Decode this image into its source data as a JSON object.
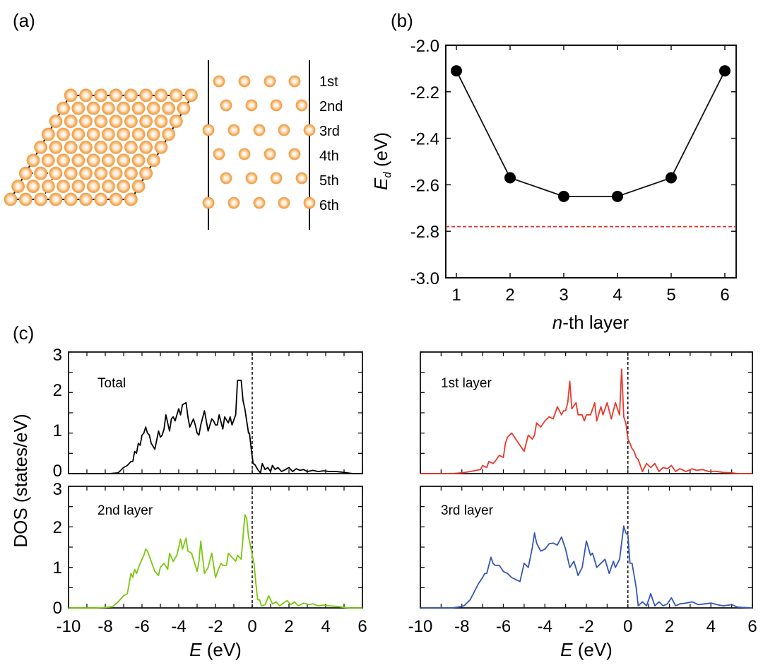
{
  "panel_labels": {
    "a": "(a)",
    "b": "(b)",
    "c": "(c)"
  },
  "structure": {
    "layer_labels": [
      "1st",
      "2nd",
      "3rd",
      "4th",
      "5th",
      "6th"
    ],
    "atom_color": "#f4a460"
  },
  "chart_data": [
    {
      "id": "b",
      "type": "line",
      "title": "",
      "xlabel": "n-th layer",
      "ylabel": "E_d (eV)",
      "xlabel_italic_part": "n",
      "xlabel_rest": "-th layer",
      "ylabel_main": "E",
      "ylabel_sub": "d",
      "ylabel_rest": " (eV)",
      "x": [
        1,
        2,
        3,
        4,
        5,
        6
      ],
      "values": [
        -2.11,
        -2.57,
        -2.65,
        -2.65,
        -2.57,
        -2.11
      ],
      "xlim": [
        0.8,
        6.2
      ],
      "ylim": [
        -3.0,
        -2.0
      ],
      "xticks": [
        "1",
        "2",
        "3",
        "4",
        "5",
        "6"
      ],
      "yticks": [
        "-2.0",
        "-2.2",
        "-2.4",
        "-2.6",
        "-2.8",
        "-3.0"
      ],
      "reference_line": {
        "y": -2.78,
        "style": "dashed",
        "color": "#e0302a"
      },
      "line_color": "#000000",
      "marker": "filled-circle"
    },
    {
      "id": "c",
      "type": "line",
      "ylabel": "DOS (states/eV)",
      "xlabel_italic_part": "E",
      "xlabel_rest": " (eV)",
      "xlim": [
        -10,
        6
      ],
      "ylim": [
        0,
        3
      ],
      "xticks": [
        "-10",
        "-8",
        "-6",
        "-4",
        "-2",
        "0",
        "2",
        "4",
        "6"
      ],
      "yticks": [
        "0",
        "1",
        "2",
        "3"
      ],
      "fermi_level": 0,
      "subplots": [
        {
          "name": "Total",
          "color": "#000000",
          "x": [
            -10,
            -8.5,
            -7.8,
            -7.3,
            -7.0,
            -6.8,
            -6.6,
            -6.5,
            -6.4,
            -6.3,
            -6.2,
            -6.1,
            -6.0,
            -5.9,
            -5.8,
            -5.7,
            -5.6,
            -5.5,
            -5.3,
            -5.1,
            -5.0,
            -4.9,
            -4.8,
            -4.7,
            -4.5,
            -4.4,
            -4.3,
            -4.2,
            -4.0,
            -3.9,
            -3.8,
            -3.6,
            -3.5,
            -3.4,
            -3.2,
            -3.1,
            -3.0,
            -2.9,
            -2.8,
            -2.6,
            -2.4,
            -2.2,
            -2.1,
            -2.0,
            -1.9,
            -1.8,
            -1.6,
            -1.5,
            -1.3,
            -1.2,
            -1.1,
            -0.9,
            -0.8,
            -0.6,
            -0.5,
            -0.4,
            -0.3,
            -0.2,
            -0.15,
            -0.05,
            0.05,
            0.15,
            0.3,
            0.45,
            0.55,
            0.7,
            0.85,
            1.0,
            1.1,
            1.25,
            1.4,
            1.6,
            1.8,
            2.0,
            2.2,
            2.4,
            2.6,
            2.8,
            3.0,
            3.3,
            3.6,
            3.9,
            4.2,
            4.6,
            5.0,
            5.3,
            5.5,
            6.0
          ],
          "values": [
            0,
            0,
            0,
            0.02,
            0.15,
            0.2,
            0.3,
            0.3,
            0.55,
            0.5,
            0.75,
            0.7,
            0.95,
            1.0,
            1.15,
            1.0,
            0.95,
            0.75,
            0.6,
            1.05,
            0.9,
            0.95,
            1.1,
            1.45,
            1.05,
            1.35,
            1.4,
            1.3,
            1.6,
            1.45,
            1.7,
            1.75,
            1.4,
            1.15,
            1.35,
            1.2,
            1.0,
            0.95,
            1.2,
            1.55,
            1.05,
            1.35,
            1.3,
            1.2,
            1.2,
            1.45,
            1.1,
            1.4,
            1.25,
            1.4,
            1.2,
            1.45,
            2.3,
            2.3,
            1.8,
            1.6,
            1.3,
            1.0,
            1.0,
            0.6,
            0.25,
            0.22,
            0.1,
            0.02,
            0.25,
            0.1,
            0.15,
            0.05,
            0.2,
            0.1,
            0.15,
            0.05,
            0.1,
            0.15,
            0.05,
            0.12,
            0.08,
            0.1,
            0.05,
            0.08,
            0.05,
            0.07,
            0.05,
            0.05,
            0.03,
            0.01,
            0,
            0
          ]
        },
        {
          "name": "1st layer",
          "color": "#e8392b",
          "x": [
            -10,
            -8.5,
            -8.0,
            -7.6,
            -7.3,
            -7.1,
            -7.0,
            -6.8,
            -6.7,
            -6.5,
            -6.4,
            -6.2,
            -6.0,
            -5.9,
            -5.8,
            -5.6,
            -5.4,
            -5.2,
            -5.0,
            -4.9,
            -4.8,
            -4.6,
            -4.5,
            -4.4,
            -4.2,
            -4.0,
            -3.8,
            -3.6,
            -3.4,
            -3.2,
            -3.1,
            -3.0,
            -2.9,
            -2.8,
            -2.7,
            -2.5,
            -2.4,
            -2.2,
            -2.1,
            -2.0,
            -1.8,
            -1.6,
            -1.5,
            -1.3,
            -1.2,
            -1.0,
            -0.8,
            -0.6,
            -0.4,
            -0.3,
            -0.2,
            -0.1,
            0.0,
            0.1,
            0.2,
            0.3,
            0.4,
            0.5,
            0.7,
            0.9,
            1.1,
            1.3,
            1.5,
            1.7,
            1.9,
            2.1,
            2.3,
            2.5,
            2.8,
            3.1,
            3.3,
            3.6,
            3.9,
            4.2,
            4.6,
            5.0,
            5.3,
            6.0
          ],
          "values": [
            0,
            0,
            0.02,
            0.05,
            0.08,
            0.1,
            0.2,
            0.15,
            0.3,
            0.25,
            0.3,
            0.45,
            0.4,
            0.75,
            0.9,
            1.0,
            0.85,
            0.7,
            0.55,
            0.75,
            0.95,
            0.85,
            0.95,
            1.25,
            1.15,
            1.3,
            1.4,
            1.35,
            1.65,
            1.45,
            1.55,
            1.55,
            1.75,
            2.28,
            1.6,
            1.75,
            1.45,
            1.45,
            1.3,
            1.45,
            1.45,
            1.75,
            1.3,
            1.65,
            1.45,
            1.75,
            1.35,
            1.75,
            1.45,
            2.58,
            1.4,
            1.25,
            0.85,
            0.75,
            0.62,
            0.55,
            0.4,
            0.35,
            0.05,
            0.25,
            0.15,
            0.25,
            0.05,
            0.15,
            0.12,
            0.2,
            0.05,
            0.12,
            0.05,
            0.12,
            0.08,
            0.1,
            0.05,
            0.06,
            0.03,
            0.02,
            0,
            0
          ]
        },
        {
          "name": "2nd layer",
          "color": "#7ac70c",
          "x": [
            -10,
            -9.0,
            -8.5,
            -8.0,
            -7.6,
            -7.3,
            -7.0,
            -6.8,
            -6.6,
            -6.5,
            -6.4,
            -6.3,
            -6.1,
            -5.9,
            -5.8,
            -5.7,
            -5.5,
            -5.3,
            -5.1,
            -5.0,
            -4.8,
            -4.6,
            -4.5,
            -4.3,
            -4.1,
            -3.9,
            -3.8,
            -3.6,
            -3.5,
            -3.3,
            -3.1,
            -3.0,
            -2.9,
            -2.8,
            -2.6,
            -2.4,
            -2.2,
            -2.0,
            -1.8,
            -1.7,
            -1.6,
            -1.4,
            -1.3,
            -1.1,
            -0.9,
            -0.8,
            -0.6,
            -0.4,
            -0.3,
            -0.2,
            -0.1,
            0.0,
            0.1,
            0.2,
            0.3,
            0.4,
            0.5,
            0.7,
            0.9,
            1.1,
            1.3,
            1.5,
            1.7,
            1.9,
            2.1,
            2.3,
            2.5,
            2.8,
            3.1,
            3.3,
            3.6,
            3.9,
            4.2,
            4.6,
            5.0,
            5.3,
            6.0
          ],
          "values": [
            0,
            0,
            0,
            0.01,
            0.03,
            0.15,
            0.3,
            0.35,
            0.85,
            0.75,
            0.95,
            0.85,
            1.1,
            1.3,
            1.45,
            1.4,
            1.15,
            0.9,
            0.8,
            1.0,
            1.1,
            0.95,
            1.35,
            1.15,
            1.3,
            1.7,
            1.45,
            1.72,
            1.4,
            1.35,
            1.05,
            0.9,
            1.15,
            1.65,
            0.85,
            1.0,
            1.35,
            0.75,
            1.0,
            1.1,
            1.05,
            1.05,
            1.35,
            1.25,
            1.15,
            1.3,
            1.2,
            2.3,
            2.2,
            1.75,
            1.55,
            1.3,
            1.1,
            0.6,
            0.2,
            0.2,
            0.05,
            0.08,
            0.3,
            0.1,
            0.15,
            0.05,
            0.12,
            0.18,
            0.08,
            0.15,
            0.05,
            0.12,
            0.08,
            0.1,
            0.05,
            0.07,
            0.05,
            0.04,
            0.01,
            0,
            0
          ]
        },
        {
          "name": "3rd layer",
          "color": "#3457b5",
          "x": [
            -10,
            -8.5,
            -8.2,
            -7.9,
            -7.6,
            -7.4,
            -7.2,
            -7.0,
            -6.9,
            -6.8,
            -6.6,
            -6.5,
            -6.4,
            -6.2,
            -6.0,
            -5.8,
            -5.6,
            -5.4,
            -5.2,
            -5.0,
            -4.8,
            -4.6,
            -4.5,
            -4.4,
            -4.2,
            -4.0,
            -3.8,
            -3.6,
            -3.4,
            -3.2,
            -3.0,
            -2.8,
            -2.6,
            -2.4,
            -2.2,
            -2.0,
            -1.8,
            -1.7,
            -1.5,
            -1.3,
            -1.1,
            -0.9,
            -0.7,
            -0.6,
            -0.4,
            -0.2,
            -0.1,
            0.0,
            0.1,
            0.2,
            0.3,
            0.4,
            0.5,
            0.7,
            0.9,
            1.1,
            1.3,
            1.5,
            1.7,
            1.9,
            2.1,
            2.3,
            2.5,
            2.8,
            3.1,
            3.4,
            3.7,
            4.0,
            4.3,
            4.6,
            5.0,
            5.3,
            6.0
          ],
          "values": [
            0,
            0,
            0.02,
            0.05,
            0.2,
            0.4,
            0.6,
            0.75,
            0.85,
            0.85,
            1.25,
            1.1,
            1.05,
            1.05,
            0.9,
            0.85,
            0.75,
            0.7,
            0.65,
            1.1,
            1.0,
            1.5,
            1.85,
            1.6,
            1.4,
            1.45,
            1.58,
            1.6,
            1.55,
            1.75,
            1.45,
            1.0,
            1.15,
            0.8,
            1.0,
            1.65,
            1.3,
            1.35,
            1.0,
            1.1,
            1.2,
            0.85,
            1.15,
            1.0,
            1.2,
            2.02,
            1.85,
            1.8,
            1.1,
            1.1,
            0.8,
            0.5,
            0.05,
            0.15,
            0.05,
            0.35,
            0.05,
            0.15,
            0.05,
            0.1,
            0.25,
            0.05,
            0.1,
            0.12,
            0.15,
            0.08,
            0.1,
            0.12,
            0.08,
            0.05,
            0.08,
            0.02,
            0
          ]
        }
      ]
    }
  ]
}
